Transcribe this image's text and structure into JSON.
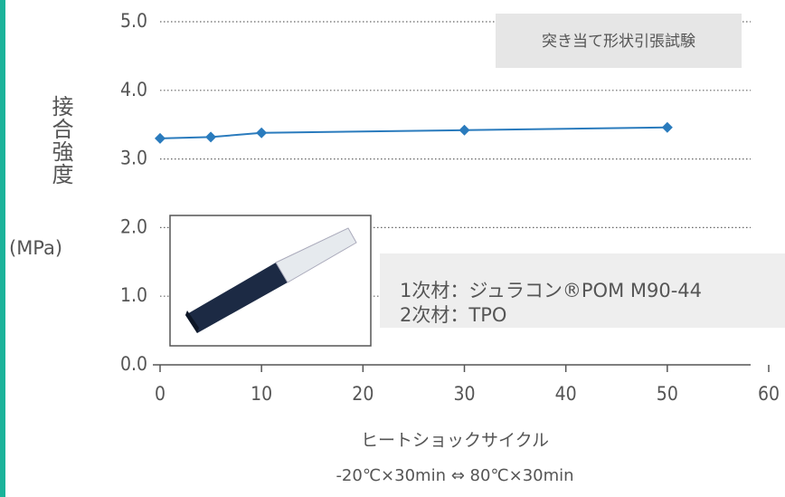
{
  "chart_data": {
    "type": "line",
    "y_label": [
      "接合強度",
      "(MPa)"
    ],
    "x_label": [
      "ヒートショックサイクル",
      "-20℃×30min ⇔ 80℃×30min"
    ],
    "annotation": "突き当て形状引張試験",
    "material_notes": [
      "1次材：ジュラコン®POM M90-44",
      "2次材：TPO"
    ],
    "x": [
      0,
      5,
      10,
      30,
      50
    ],
    "series": [
      {
        "color": "#2a7bbd",
        "values": [
          3.3,
          3.32,
          3.38,
          3.42,
          3.46
        ]
      }
    ],
    "xlim": [
      0,
      60
    ],
    "xticks": [
      0,
      10,
      20,
      30,
      40,
      50,
      60
    ],
    "ylim": [
      0,
      5
    ],
    "yticks": [
      {
        "value": 0,
        "label": "0.0"
      },
      {
        "value": 1,
        "label": "1.0"
      },
      {
        "value": 2,
        "label": "2.0"
      },
      {
        "value": 3,
        "label": "3.0"
      },
      {
        "value": 4,
        "label": "4.0"
      },
      {
        "value": 5,
        "label": "5.0"
      }
    ],
    "grid": true
  }
}
